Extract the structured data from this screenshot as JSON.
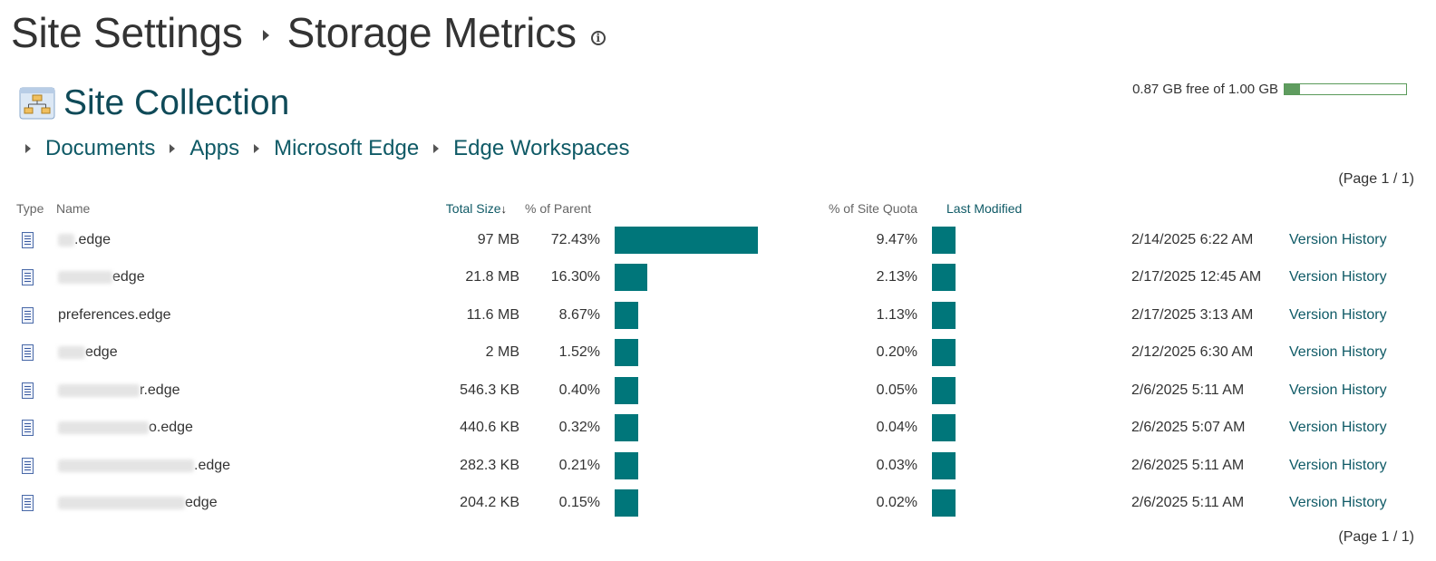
{
  "header": {
    "breadcrumb_root": "Site Settings",
    "page_title": "Storage Metrics"
  },
  "site_collection": {
    "title": "Site Collection"
  },
  "quota": {
    "text": "0.87 GB free of 1.00 GB",
    "used_fraction": 0.13
  },
  "path": [
    "Documents",
    "Apps",
    "Microsoft Edge",
    "Edge Workspaces"
  ],
  "pagination": {
    "top": "(Page 1 / 1)",
    "bottom": "(Page 1 / 1)"
  },
  "columns": {
    "type": "Type",
    "name": "Name",
    "total_size": "Total Size",
    "pct_parent": "% of Parent",
    "pct_quota": "% of Site Quota",
    "last_modified": "Last Modified"
  },
  "rows": [
    {
      "name": ".edge",
      "size": "97 MB",
      "pct_parent": "72.43%",
      "parent_value": 72.43,
      "pct_quota": "9.47%",
      "quota_value": 9.47,
      "modified": "2/14/2025 6:22 AM",
      "action": "Version History"
    },
    {
      "name": "edge",
      "size": "21.8 MB",
      "pct_parent": "16.30%",
      "parent_value": 16.3,
      "pct_quota": "2.13%",
      "quota_value": 2.13,
      "modified": "2/17/2025 12:45 AM",
      "action": "Version History"
    },
    {
      "name": "preferences.edge",
      "size": "11.6 MB",
      "pct_parent": "8.67%",
      "parent_value": 8.67,
      "pct_quota": "1.13%",
      "quota_value": 1.13,
      "modified": "2/17/2025 3:13 AM",
      "action": "Version History"
    },
    {
      "name": "edge",
      "size": "2 MB",
      "pct_parent": "1.52%",
      "parent_value": 1.52,
      "pct_quota": "0.20%",
      "quota_value": 0.2,
      "modified": "2/12/2025 6:30 AM",
      "action": "Version History"
    },
    {
      "name": "r.edge",
      "size": "546.3 KB",
      "pct_parent": "0.40%",
      "parent_value": 0.4,
      "pct_quota": "0.05%",
      "quota_value": 0.05,
      "modified": "2/6/2025 5:11 AM",
      "action": "Version History"
    },
    {
      "name": "o.edge",
      "size": "440.6 KB",
      "pct_parent": "0.32%",
      "parent_value": 0.32,
      "pct_quota": "0.04%",
      "quota_value": 0.04,
      "modified": "2/6/2025 5:07 AM",
      "action": "Version History"
    },
    {
      "name": ".edge",
      "size": "282.3 KB",
      "pct_parent": "0.21%",
      "parent_value": 0.21,
      "pct_quota": "0.03%",
      "quota_value": 0.03,
      "modified": "2/6/2025 5:11 AM",
      "action": "Version History"
    },
    {
      "name": "edge",
      "size": "204.2 KB",
      "pct_parent": "0.15%",
      "parent_value": 0.15,
      "pct_quota": "0.02%",
      "quota_value": 0.02,
      "modified": "2/6/2025 5:11 AM",
      "action": "Version History"
    }
  ]
}
